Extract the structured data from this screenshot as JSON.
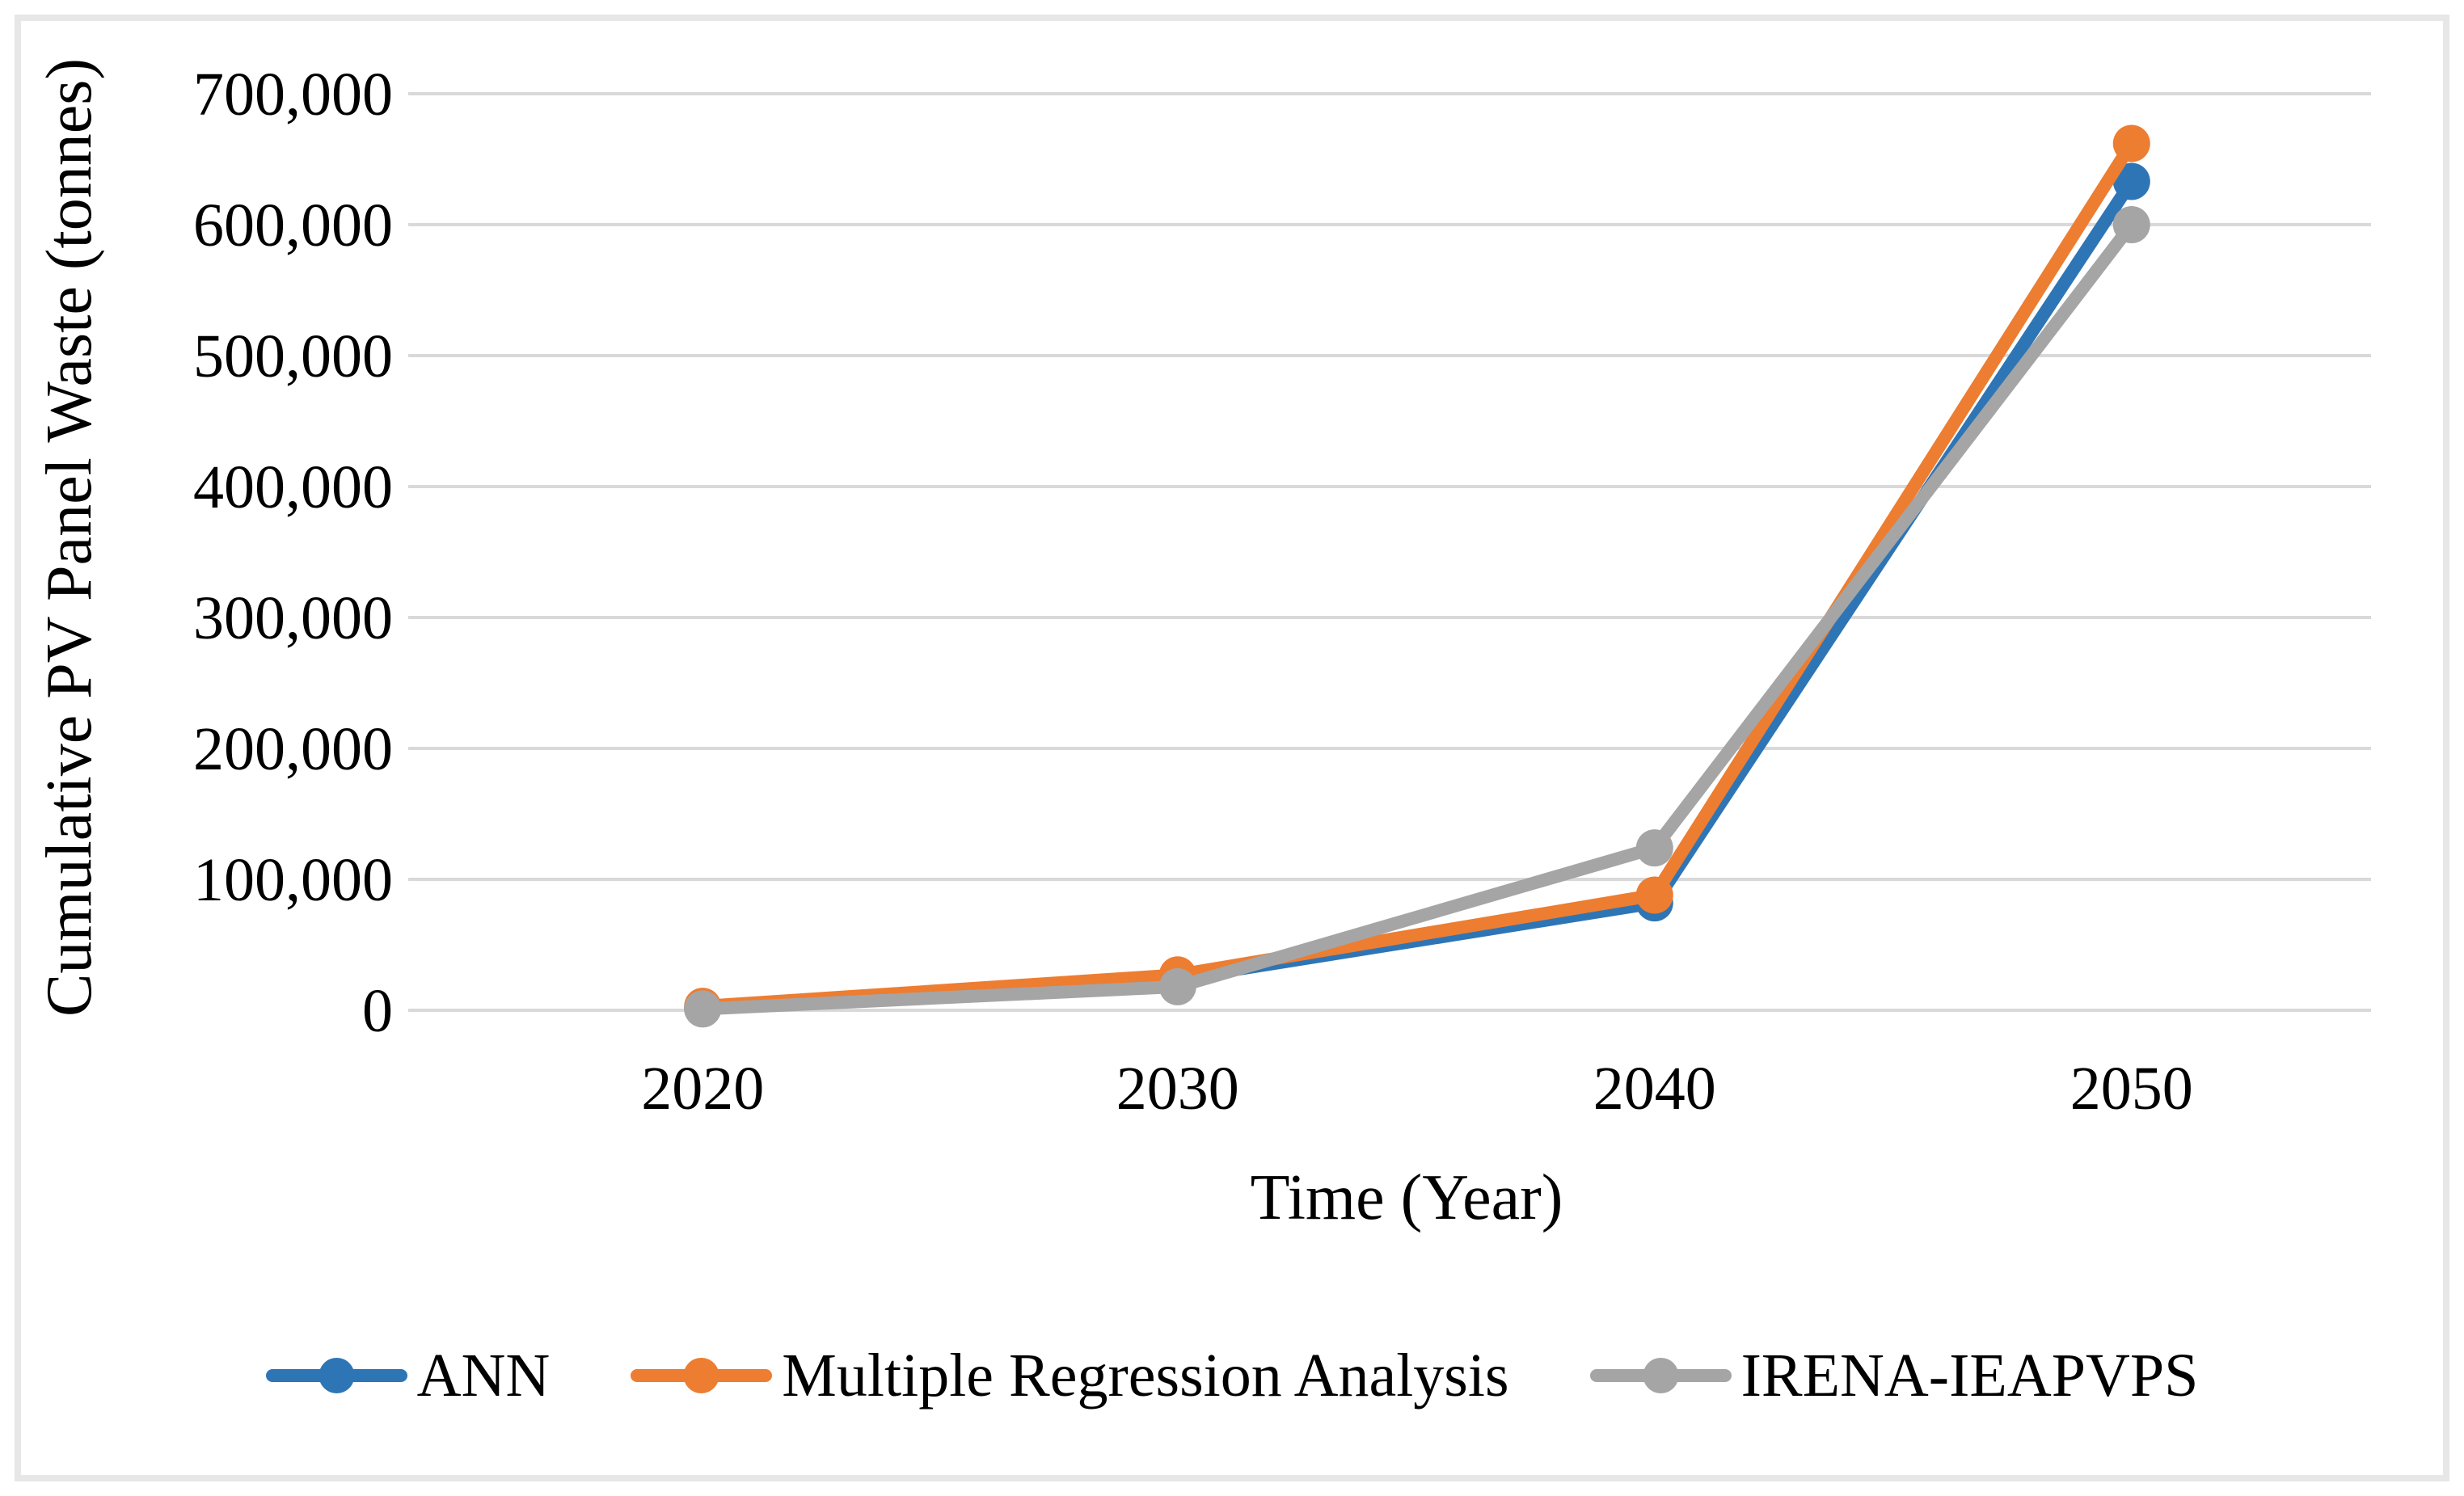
{
  "figure": {
    "background_color": "#FFFFFF",
    "border_color": "#E7E7E7"
  },
  "chart_data": {
    "type": "line",
    "title": "",
    "xlabel": "Time (Year)",
    "ylabel": "Cumulative PV Panel Waste (tonnes)",
    "x": [
      2020,
      2030,
      2040,
      2050
    ],
    "x_tick_labels": [
      "2020",
      "2030",
      "2040",
      "2050"
    ],
    "y_ticks": [
      0,
      100000,
      200000,
      300000,
      400000,
      500000,
      600000,
      700000
    ],
    "y_tick_labels": [
      "0",
      "100,000",
      "200,000",
      "300,000",
      "400,000",
      "500,000",
      "600,000",
      "700,000"
    ],
    "ylim": [
      0,
      700000
    ],
    "grid": "horizontal",
    "gridline_color": "#D9D9D9",
    "legend_position": "bottom",
    "marker": "circle",
    "series": [
      {
        "name": "ANN",
        "color": "#2E75B6",
        "values": [
          1500,
          24000,
          82000,
          633000
        ]
      },
      {
        "name": "Multiple Regression Analysis",
        "color": "#ED7D31",
        "values": [
          3000,
          27000,
          88000,
          662000
        ]
      },
      {
        "name": "IRENA-IEAPVPS",
        "color": "#A5A5A5",
        "values": [
          1000,
          18000,
          124000,
          600000
        ]
      }
    ]
  }
}
